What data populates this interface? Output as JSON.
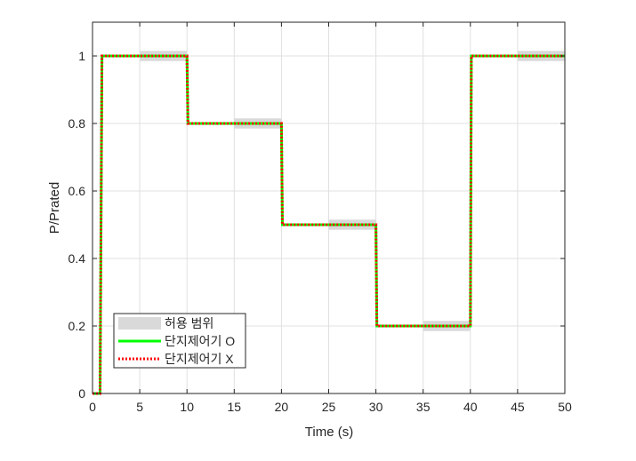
{
  "chart_data": {
    "type": "line",
    "xlabel": "Time (s)",
    "ylabel": "P/Prated",
    "xlim": [
      0,
      50
    ],
    "ylim": [
      0,
      1.1
    ],
    "xticks": [
      0,
      5,
      10,
      15,
      20,
      25,
      30,
      35,
      40,
      45,
      50
    ],
    "yticks": [
      0,
      0.2,
      0.4,
      0.6,
      0.8,
      1
    ],
    "ytick_labels": [
      "0",
      "0.2",
      "0.4",
      "0.6",
      "0.8",
      "1"
    ],
    "grid": true,
    "legend_position": "bottom-left",
    "tolerance_bands": {
      "name": "허용 범위",
      "color": "#d9d9d9",
      "half_width": 0.015,
      "bands": [
        {
          "x": [
            5,
            10
          ],
          "y": 1
        },
        {
          "x": [
            15,
            20
          ],
          "y": 0.8
        },
        {
          "x": [
            25,
            30
          ],
          "y": 0.5
        },
        {
          "x": [
            35,
            40
          ],
          "y": 0.2
        },
        {
          "x": [
            45,
            50
          ],
          "y": 1
        }
      ]
    },
    "series": [
      {
        "name": "단지제어기 O",
        "color": "#00ff00",
        "style": "solid",
        "x": [
          0,
          0.8,
          1,
          10,
          10.1,
          20,
          20.1,
          30,
          30.1,
          40,
          40.1,
          50
        ],
        "y": [
          0,
          0,
          1,
          1,
          0.8,
          0.8,
          0.5,
          0.5,
          0.2,
          0.2,
          1,
          1
        ]
      },
      {
        "name": "단지제어기 X",
        "color": "#ff0000",
        "style": "dotted",
        "x": [
          0,
          0.8,
          1,
          10,
          10.1,
          20,
          20.1,
          30,
          30.1,
          40,
          40.1,
          50
        ],
        "y": [
          0,
          0,
          1,
          1,
          0.8,
          0.8,
          0.5,
          0.5,
          0.2,
          0.2,
          1,
          1
        ]
      }
    ]
  }
}
